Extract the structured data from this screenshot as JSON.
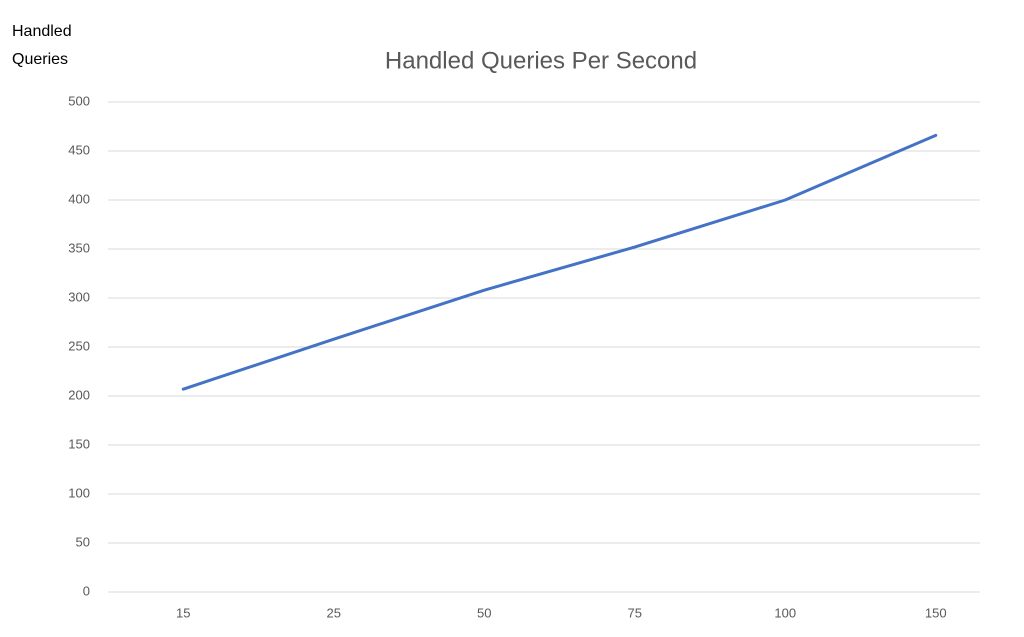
{
  "chart_data": {
    "type": "line",
    "title": "Handled Queries Per Second",
    "y_label": "Handled Queries",
    "categories": [
      "15",
      "25",
      "50",
      "75",
      "100",
      "150"
    ],
    "series": [
      {
        "name": "Handled Queries",
        "color": "#4472c4",
        "values": [
          207,
          258,
          308,
          352,
          400,
          466
        ]
      }
    ],
    "ylim": [
      0,
      500
    ],
    "yticks": [
      0,
      50,
      100,
      150,
      200,
      250,
      300,
      350,
      400,
      450,
      500
    ],
    "grid": true
  }
}
